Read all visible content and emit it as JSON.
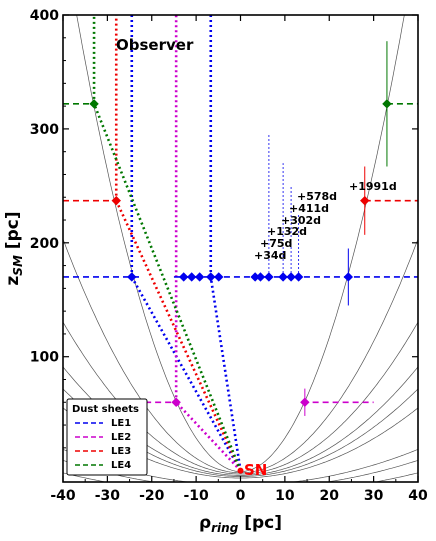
{
  "chart_data": {
    "type": "scatter",
    "xlabel_main": "ρ",
    "xlabel_sub": "ring",
    "xlabel_unit": " [pc]",
    "ylabel_main": "z",
    "ylabel_sub": "SM",
    "ylabel_unit": " [pc]",
    "xlim": [
      -40,
      40
    ],
    "ylim": [
      -10,
      400
    ],
    "x_ticks": [
      -40,
      -30,
      -20,
      -10,
      0,
      10,
      20,
      30,
      40
    ],
    "y_ticks": [
      100,
      200,
      300,
      400
    ],
    "grid": false,
    "colors": {
      "LE1": "#0000ee",
      "LE2": "#cc00cc",
      "LE3": "#ee0000",
      "LE4": "#007700",
      "parabola": "#555555",
      "sn": "#ff0000"
    },
    "observer_label": "Observer",
    "sn_label": "SN",
    "sn_point": {
      "x": 0,
      "y": 0
    },
    "legend": {
      "title": "Dust sheets",
      "placement": "lower-left",
      "entries": [
        "LE1",
        "LE2",
        "LE3",
        "LE4"
      ]
    },
    "parabola_epochs": [
      {
        "label": "+34d",
        "a": 1.7
      },
      {
        "label": "+75d",
        "a": 3.9
      },
      {
        "label": "+132d",
        "a": 6.0
      },
      {
        "label": "+302d",
        "a": 8.4
      },
      {
        "label": "+411d",
        "a": 10.4
      },
      {
        "label": "+578d",
        "a": 13.0
      },
      {
        "label": "+1991d",
        "a": 32.0
      }
    ],
    "extra_parabolas": [
      {
        "a": 25.5
      },
      {
        "a": 42.0
      }
    ],
    "sheets": [
      {
        "name": "LE1",
        "z": 170,
        "line_x": [
          -40,
          40
        ],
        "gap": [
          -22,
          -15
        ],
        "points": [
          {
            "x": -24.5,
            "xerr": 0.8,
            "yerr": 0
          },
          {
            "x": -12.8,
            "xerr": 0,
            "yerr": 0
          },
          {
            "x": -11.0,
            "xerr": 0,
            "yerr": 0
          },
          {
            "x": -9.2,
            "xerr": 0,
            "yerr": 0
          },
          {
            "x": -6.7,
            "xerr": 0,
            "yerr": 0
          },
          {
            "x": -4.9,
            "xerr": 0,
            "yerr": 0
          },
          {
            "x": 3.3,
            "xerr": 0,
            "yerr": 0
          },
          {
            "x": 4.5,
            "xerr": 0,
            "yerr": 0
          },
          {
            "x": 6.4,
            "xerr": 0,
            "yerr": 0
          },
          {
            "x": 9.6,
            "xerr": 0,
            "yerr": 0
          },
          {
            "x": 11.4,
            "xerr": 0,
            "yerr": 0
          },
          {
            "x": 13.1,
            "xerr": 0,
            "yerr": 0
          },
          {
            "x": 24.3,
            "xerr": 0,
            "yerr": 25
          }
        ]
      },
      {
        "name": "LE2",
        "z": 60,
        "line_x": [
          -26,
          30
        ],
        "gap": [
          -14.5,
          14
        ],
        "points": [
          {
            "x": -14.5,
            "xerr": 0,
            "yerr": 0
          },
          {
            "x": 14.5,
            "xerr": 0,
            "yerr": 12
          }
        ]
      },
      {
        "name": "LE3",
        "z": 237,
        "line_x": [
          -40,
          40
        ],
        "gap": [
          -28,
          28
        ],
        "points": [
          {
            "x": -28.0,
            "xerr": 0,
            "yerr": 0
          },
          {
            "x": 28.0,
            "xerr": 0,
            "yerr": 30
          }
        ]
      },
      {
        "name": "LE4",
        "z": 322,
        "line_x": [
          -40,
          40
        ],
        "gap": [
          -33,
          33
        ],
        "points": [
          {
            "x": -33.0,
            "xerr": 0,
            "yerr": 0
          },
          {
            "x": 33.0,
            "xerr": 0,
            "yerr": 55
          }
        ]
      }
    ],
    "sightlines": [
      {
        "sheet": "LE1",
        "x": -24.5,
        "z": 170
      },
      {
        "sheet": "LE1",
        "x": -6.7,
        "z": 170
      },
      {
        "sheet": "LE2",
        "x": -14.5,
        "z": 60
      },
      {
        "sheet": "LE3",
        "x": -28.0,
        "z": 237
      },
      {
        "sheet": "LE4",
        "x": -33.0,
        "z": 322
      }
    ],
    "image_points": [
      {
        "x": 6.4,
        "z": 170,
        "to_z": 295
      },
      {
        "x": 9.6,
        "z": 170,
        "to_z": 270
      },
      {
        "x": 11.4,
        "z": 170,
        "to_z": 250
      },
      {
        "x": 13.1,
        "z": 170,
        "to_z": 225
      }
    ]
  }
}
